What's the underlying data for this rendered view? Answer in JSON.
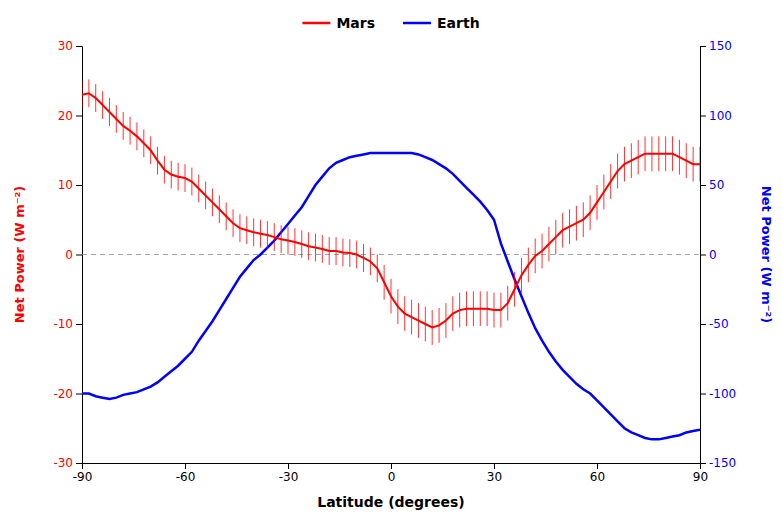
{
  "chart_data": {
    "type": "line",
    "xlabel": "Latitude (degrees)",
    "ylabel": "Net Power (W m⁻²)",
    "y2label": "Net Power (W m⁻²)",
    "xlim": [
      -90,
      90
    ],
    "xticks": [
      -90,
      -60,
      -30,
      0,
      30,
      60,
      90
    ],
    "ylim": [
      -30,
      30
    ],
    "yticks": [
      -30,
      -20,
      -10,
      0,
      10,
      20,
      30
    ],
    "y2lim": [
      -150,
      150
    ],
    "y2ticks": [
      -150,
      -100,
      -50,
      0,
      50,
      100,
      150
    ],
    "grid": false,
    "legend": "top",
    "hlines": [
      0
    ],
    "x": [
      -90,
      -88,
      -86,
      -84,
      -82,
      -80,
      -78,
      -76,
      -74,
      -72,
      -70,
      -68,
      -66,
      -64,
      -62,
      -60,
      -58,
      -56,
      -54,
      -52,
      -50,
      -48,
      -46,
      -44,
      -42,
      -40,
      -38,
      -36,
      -34,
      -32,
      -30,
      -28,
      -26,
      -24,
      -22,
      -20,
      -18,
      -16,
      -14,
      -12,
      -10,
      -8,
      -6,
      -4,
      -2,
      0,
      2,
      4,
      6,
      8,
      10,
      12,
      14,
      16,
      18,
      20,
      22,
      24,
      26,
      28,
      30,
      32,
      34,
      36,
      38,
      40,
      42,
      44,
      46,
      48,
      50,
      52,
      54,
      56,
      58,
      60,
      62,
      64,
      66,
      68,
      70,
      72,
      74,
      76,
      78,
      80,
      82,
      84,
      86,
      88,
      90
    ],
    "series": [
      {
        "name": "Mars",
        "color": "#FF0000",
        "values": [
          23.0,
          23.2,
          22.5,
          21.5,
          20.5,
          19.5,
          18.5,
          17.8,
          17.0,
          16.0,
          15.0,
          13.5,
          12.2,
          11.5,
          11.2,
          11.0,
          10.5,
          9.5,
          8.5,
          7.5,
          6.5,
          5.5,
          4.5,
          3.8,
          3.5,
          3.2,
          3.0,
          2.8,
          2.5,
          2.2,
          2.0,
          1.8,
          1.5,
          1.2,
          1.0,
          0.8,
          0.5,
          0.5,
          0.3,
          0.2,
          0.0,
          -0.5,
          -1.0,
          -2.0,
          -4.0,
          -6.0,
          -7.5,
          -8.5,
          -9.0,
          -9.5,
          -10.0,
          -10.5,
          -10.2,
          -9.5,
          -8.5,
          -8.0,
          -7.8,
          -7.8,
          -7.8,
          -7.8,
          -8.0,
          -8.0,
          -7.0,
          -5.0,
          -3.0,
          -1.5,
          -0.2,
          0.5,
          1.5,
          2.5,
          3.5,
          4.0,
          4.5,
          5.0,
          6.0,
          7.5,
          9.0,
          10.5,
          12.0,
          13.0,
          13.5,
          14.0,
          14.5,
          14.5,
          14.5,
          14.5,
          14.5,
          14.0,
          13.5,
          13.0,
          13.0
        ],
        "errors": [
          2.0,
          2.0,
          2.0,
          2.0,
          2.0,
          2.0,
          2.0,
          2.0,
          2.0,
          2.0,
          2.0,
          2.0,
          2.0,
          2.0,
          2.0,
          2.0,
          2.0,
          2.0,
          2.0,
          2.0,
          2.0,
          2.0,
          2.0,
          2.0,
          2.0,
          2.0,
          2.0,
          2.0,
          2.0,
          2.0,
          2.0,
          2.0,
          2.0,
          2.0,
          2.0,
          2.0,
          2.0,
          2.0,
          2.0,
          2.0,
          2.0,
          2.0,
          2.0,
          2.0,
          2.5,
          2.5,
          2.5,
          2.5,
          2.5,
          2.5,
          2.5,
          2.5,
          2.5,
          2.5,
          2.5,
          2.5,
          2.5,
          2.5,
          2.5,
          2.5,
          2.5,
          2.5,
          2.5,
          2.5,
          2.5,
          2.5,
          2.5,
          2.5,
          2.5,
          2.5,
          2.5,
          2.5,
          2.5,
          2.5,
          2.5,
          2.5,
          2.5,
          2.5,
          2.5,
          2.5,
          2.5,
          2.5,
          2.5,
          2.5,
          2.5,
          2.5,
          2.5,
          2.5,
          2.5,
          2.5,
          2.5
        ]
      },
      {
        "name": "Earth",
        "color": "#0000FF",
        "axis": "y2",
        "values": [
          -100,
          -100,
          -102,
          -103,
          -104,
          -103,
          -101,
          -100,
          -99,
          -97,
          -95,
          -92,
          -88,
          -84,
          -80,
          -75,
          -70,
          -62,
          -55,
          -48,
          -40,
          -32,
          -24,
          -16,
          -10,
          -4,
          0,
          5,
          10,
          16,
          22,
          28,
          34,
          42,
          50,
          56,
          62,
          66,
          68,
          70,
          71,
          72,
          73,
          73,
          73,
          73,
          73,
          73,
          73,
          72,
          70,
          68,
          65,
          62,
          58,
          53,
          48,
          43,
          38,
          32,
          25,
          8,
          -5,
          -18,
          -30,
          -42,
          -53,
          -62,
          -70,
          -77,
          -83,
          -88,
          -93,
          -97,
          -100,
          -105,
          -110,
          -115,
          -120,
          -125,
          -128,
          -130,
          -132,
          -133,
          -133,
          -132,
          -131,
          -130,
          -128,
          -127,
          -126
        ]
      }
    ]
  }
}
